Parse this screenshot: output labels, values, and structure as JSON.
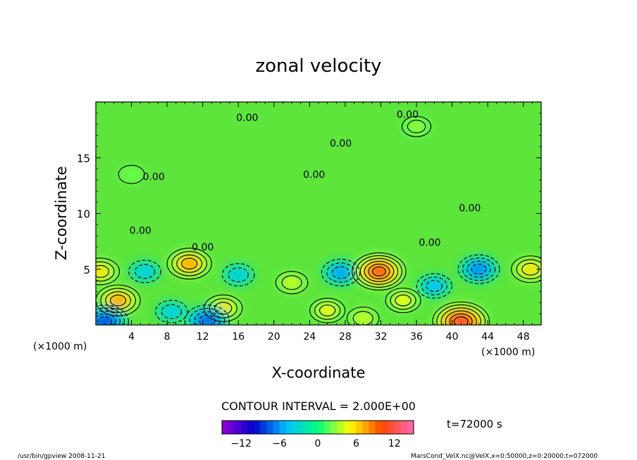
{
  "chart_data": {
    "type": "heatmap",
    "title": "zonal velocity",
    "xlabel": "X-coordinate",
    "ylabel": "Z-coordinate",
    "x_unit_left": "(×1000 m)",
    "x_unit_right": "(×1000 m)",
    "xlim": [
      0,
      50
    ],
    "ylim": [
      0,
      20
    ],
    "x_ticks": [
      4,
      8,
      12,
      16,
      20,
      24,
      28,
      32,
      36,
      40,
      44,
      48
    ],
    "x_tick_labels": [
      "4",
      "8",
      "12",
      "16",
      "20",
      "24",
      "28",
      "32",
      "36",
      "40",
      "44",
      "48"
    ],
    "y_ticks": [
      5,
      10,
      15
    ],
    "y_tick_labels": [
      "5",
      "10",
      "15"
    ],
    "contour_interval_text": "CONTOUR INTERVAL = 2.000E+00",
    "contour_labels": [
      {
        "text": "0.00",
        "x": 17,
        "z": 18.6
      },
      {
        "text": "0.00",
        "x": 35,
        "z": 18.9
      },
      {
        "text": "0.00",
        "x": 27.5,
        "z": 16.3
      },
      {
        "text": "0.00",
        "x": 6.5,
        "z": 13.3
      },
      {
        "text": "0.00",
        "x": 24.5,
        "z": 13.5
      },
      {
        "text": "0.00",
        "x": 42,
        "z": 10.5
      },
      {
        "text": "0.00",
        "x": 5,
        "z": 8.5
      },
      {
        "text": "0.00",
        "x": 37.5,
        "z": 7.4
      },
      {
        "text": "0.00",
        "x": 12,
        "z": 7.0
      }
    ],
    "features": [
      {
        "x": 2.5,
        "z": 2.2,
        "value": 8
      },
      {
        "x": 0.5,
        "z": 4.8,
        "value": 6
      },
      {
        "x": 10.5,
        "z": 5.5,
        "value": 8
      },
      {
        "x": 14.3,
        "z": 1.5,
        "value": 6
      },
      {
        "x": 5.5,
        "z": 4.8,
        "value": -4
      },
      {
        "x": 8.5,
        "z": 1.2,
        "value": -4
      },
      {
        "x": 16,
        "z": 4.5,
        "value": -4
      },
      {
        "x": 22,
        "z": 3.8,
        "value": 4
      },
      {
        "x": 27.5,
        "z": 4.7,
        "value": -6
      },
      {
        "x": 31.8,
        "z": 4.8,
        "value": 11
      },
      {
        "x": 26,
        "z": 1.3,
        "value": 5
      },
      {
        "x": 34.5,
        "z": 2.2,
        "value": 5
      },
      {
        "x": 43,
        "z": 5.0,
        "value": -7
      },
      {
        "x": 41,
        "z": 0.3,
        "value": 12
      },
      {
        "x": 38,
        "z": 3.5,
        "value": -5
      },
      {
        "x": 48.8,
        "z": 5.0,
        "value": 6
      },
      {
        "x": 1,
        "z": 0.3,
        "value": -9
      },
      {
        "x": 12.5,
        "z": 0.4,
        "value": -8
      },
      {
        "x": 30,
        "z": 0.6,
        "value": 4
      },
      {
        "x": 36,
        "z": 17.8,
        "value": 3
      },
      {
        "x": 4,
        "z": 13.5,
        "value": 2
      }
    ],
    "colorbar": {
      "min": -15,
      "max": 15,
      "tick_values": [
        -12,
        -6,
        0,
        6,
        12
      ],
      "tick_labels": [
        "−12",
        "−6",
        "0",
        "6",
        "12"
      ],
      "colors": [
        "#9400d3",
        "#0000cd",
        "#00bfff",
        "#00ff7f",
        "#ffff00",
        "#ff4500",
        "#ff69b4"
      ]
    },
    "time_label": "t=72000 s"
  },
  "footer": {
    "left": "/usr/bin/gpview   2008-11-21",
    "right": "MarsCond_VelX.nc@VelX,x=0:50000,z=0:20000,t=072000"
  },
  "colors": {
    "background": "#ffffff",
    "text": "#000000"
  }
}
